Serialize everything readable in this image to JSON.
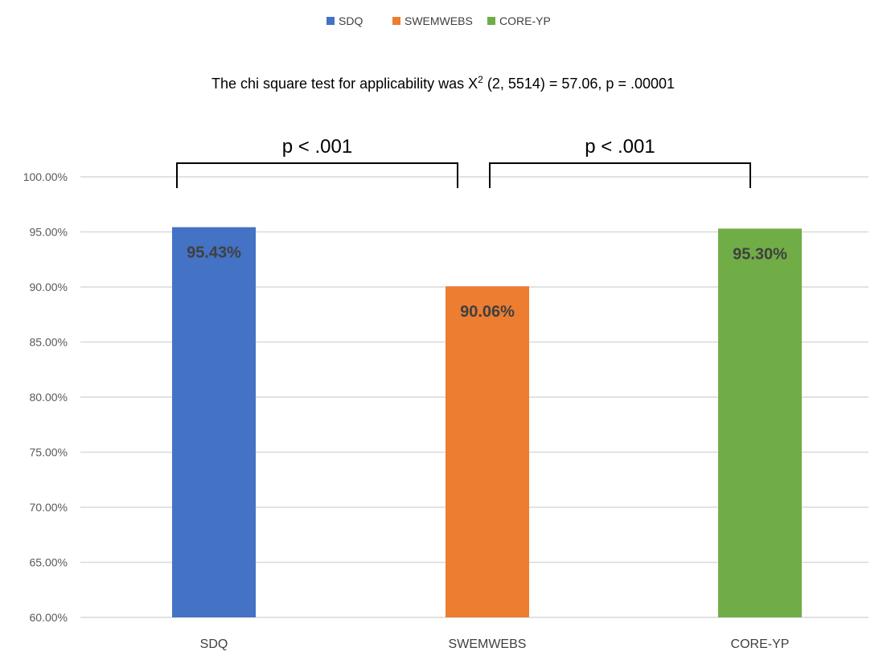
{
  "chart_data": {
    "type": "bar",
    "subtitle_main": "The chi square test for applicability was X",
    "subtitle_sup": "2",
    "subtitle_rest": " (2, 5514) = 57.06, p = .00001",
    "categories": [
      "SDQ",
      "SWEMWEBS",
      "CORE-YP"
    ],
    "values": [
      95.43,
      90.06,
      95.3
    ],
    "data_labels": [
      "95.43%",
      "90.06%",
      "95.30%"
    ],
    "colors": [
      "#4472C4",
      "#ED7D31",
      "#70AD47"
    ],
    "legend": {
      "position": "top",
      "entries": [
        {
          "name": "SDQ",
          "color": "#4472C4"
        },
        {
          "name": "SWEMWEBS",
          "color": "#ED7D31"
        },
        {
          "name": "CORE-YP",
          "color": "#70AD47"
        }
      ]
    },
    "ylim": [
      60,
      100
    ],
    "y_ticks": [
      60,
      65,
      70,
      75,
      80,
      85,
      90,
      95,
      100
    ],
    "y_tick_labels": [
      "60.00%",
      "65.00%",
      "70.00%",
      "75.00%",
      "80.00%",
      "85.00%",
      "90.00%",
      "95.00%",
      "100.00%"
    ],
    "grid": true,
    "annotations": [
      {
        "text": "p < .001",
        "from": "SDQ",
        "to": "SWEMWEBS"
      },
      {
        "text": "p < .001",
        "from": "SWEMWEBS",
        "to": "CORE-YP"
      }
    ]
  }
}
